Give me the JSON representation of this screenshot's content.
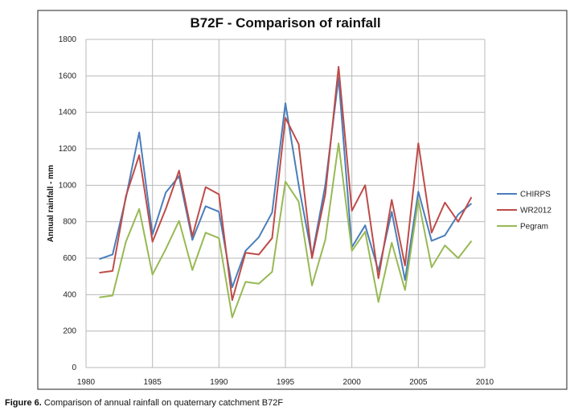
{
  "chart_data": {
    "type": "line",
    "title": "B72F - Comparison of rainfall",
    "xlabel": "",
    "ylabel": "Annual rainfall - mm",
    "xlim": [
      1980,
      2010
    ],
    "ylim": [
      0,
      1800
    ],
    "xticks": [
      1980,
      1985,
      1990,
      1995,
      2000,
      2005,
      2010
    ],
    "yticks": [
      0,
      200,
      400,
      600,
      800,
      1000,
      1200,
      1400,
      1600,
      1800
    ],
    "grid": true,
    "legend_position": "right",
    "x": [
      1981,
      1982,
      1983,
      1984,
      1985,
      1986,
      1987,
      1988,
      1989,
      1990,
      1991,
      1992,
      1993,
      1994,
      1995,
      1996,
      1997,
      1998,
      1999,
      2000,
      2001,
      2002,
      2003,
      2004,
      2005,
      2006,
      2007,
      2008,
      2009
    ],
    "series": [
      {
        "name": "CHIRPS",
        "color": "#4a7ebb",
        "values": [
          595,
          620,
          930,
          1290,
          730,
          960,
          1050,
          700,
          885,
          855,
          440,
          640,
          715,
          850,
          1450,
          1000,
          610,
          1000,
          1590,
          660,
          780,
          530,
          855,
          480,
          965,
          695,
          725,
          840,
          900
        ]
      },
      {
        "name": "WR2012",
        "color": "#be4b48",
        "values": [
          520,
          530,
          940,
          1165,
          690,
          870,
          1080,
          720,
          990,
          950,
          370,
          630,
          620,
          710,
          1370,
          1225,
          600,
          950,
          1650,
          860,
          1000,
          490,
          920,
          560,
          1230,
          740,
          905,
          800,
          935
        ]
      },
      {
        "name": "Pegram",
        "color": "#98b954",
        "values": [
          385,
          395,
          690,
          870,
          510,
          650,
          805,
          535,
          740,
          710,
          275,
          470,
          460,
          525,
          1020,
          910,
          450,
          700,
          1230,
          640,
          745,
          360,
          685,
          425,
          920,
          550,
          670,
          600,
          695
        ]
      }
    ]
  },
  "caption": {
    "label": "Figure 6.",
    "text": " Comparison of annual rainfall on quaternary catchment B72F"
  }
}
